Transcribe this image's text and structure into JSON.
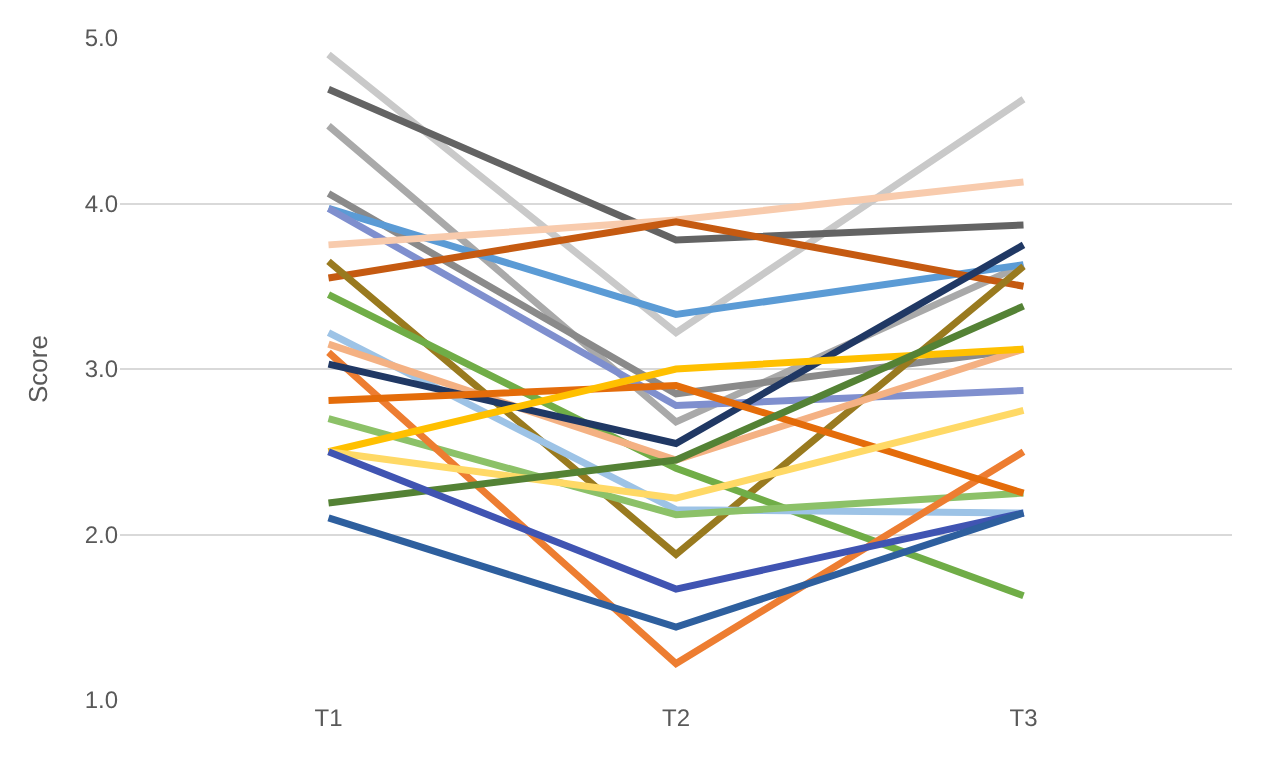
{
  "chart_data": {
    "type": "line",
    "ylabel": "Score",
    "categories": [
      "T1",
      "T2",
      "T3"
    ],
    "ylim": [
      1,
      5
    ],
    "yticks": [
      {
        "value": 1,
        "label": "1.0"
      },
      {
        "value": 2,
        "label": "2.0"
      },
      {
        "value": 3,
        "label": "3.0"
      },
      {
        "value": 4,
        "label": "4.0"
      },
      {
        "value": 5,
        "label": "5.0"
      }
    ],
    "grid": "y",
    "marker": "none",
    "line_style": "solid",
    "series": [
      {
        "color": "#c9c9c9",
        "values": [
          4.9,
          3.22,
          4.63
        ]
      },
      {
        "color": "#636363",
        "values": [
          4.69,
          3.78,
          3.87
        ]
      },
      {
        "color": "#a9a9a9",
        "values": [
          4.47,
          2.68,
          3.63
        ]
      },
      {
        "color": "#8a8a8a",
        "values": [
          4.06,
          2.85,
          3.12
        ]
      },
      {
        "color": "#5b9bd5",
        "values": [
          3.97,
          3.33,
          3.63
        ]
      },
      {
        "color": "#7f8fce",
        "values": [
          3.97,
          2.78,
          2.87
        ]
      },
      {
        "color": "#f8cbad",
        "values": [
          3.75,
          3.9,
          4.13
        ]
      },
      {
        "color": "#c55a11",
        "values": [
          3.55,
          3.89,
          3.5
        ]
      },
      {
        "color": "#997a1f",
        "values": [
          3.65,
          1.88,
          3.62
        ]
      },
      {
        "color": "#70ad47",
        "values": [
          3.45,
          2.4,
          1.63
        ]
      },
      {
        "color": "#9dc3e6",
        "values": [
          3.22,
          2.15,
          2.13
        ]
      },
      {
        "color": "#8cc168",
        "values": [
          2.7,
          2.12,
          2.25
        ]
      },
      {
        "color": "#ed7d31",
        "values": [
          3.1,
          1.22,
          2.5
        ]
      },
      {
        "color": "#f4b183",
        "values": [
          3.15,
          2.45,
          3.12
        ]
      },
      {
        "color": "#203864",
        "values": [
          3.03,
          2.55,
          3.75
        ]
      },
      {
        "color": "#e46c0a",
        "values": [
          2.81,
          2.9,
          2.25
        ]
      },
      {
        "color": "#ffc000",
        "values": [
          2.5,
          3.0,
          3.12
        ]
      },
      {
        "color": "#ffd966",
        "values": [
          2.5,
          2.22,
          2.75
        ]
      },
      {
        "color": "#548235",
        "values": [
          2.19,
          2.45,
          3.38
        ]
      },
      {
        "color": "#4054b2",
        "values": [
          2.5,
          1.67,
          2.13
        ]
      },
      {
        "color": "#2e5f9e",
        "values": [
          2.1,
          1.44,
          2.13
        ]
      }
    ]
  }
}
